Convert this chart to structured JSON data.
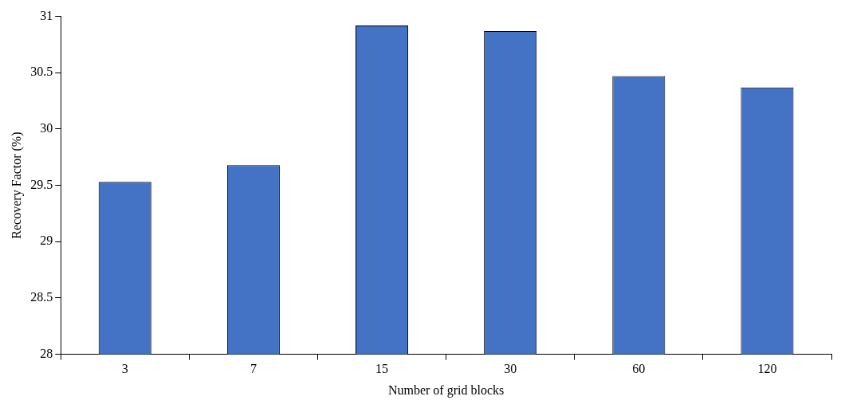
{
  "chart_data": {
    "type": "bar",
    "xlabel": "Number of grid blocks",
    "ylabel": "Recovery Factor (%)",
    "categories": [
      "3",
      "7",
      "15",
      "30",
      "60",
      "120"
    ],
    "values": [
      29.53,
      29.68,
      30.92,
      30.87,
      30.47,
      30.37
    ],
    "color": "#4472c4",
    "ylim": [
      28,
      31
    ],
    "yticks": [
      28,
      28.5,
      29,
      29.5,
      30,
      30.5,
      31
    ],
    "grid": false,
    "legend": false
  }
}
